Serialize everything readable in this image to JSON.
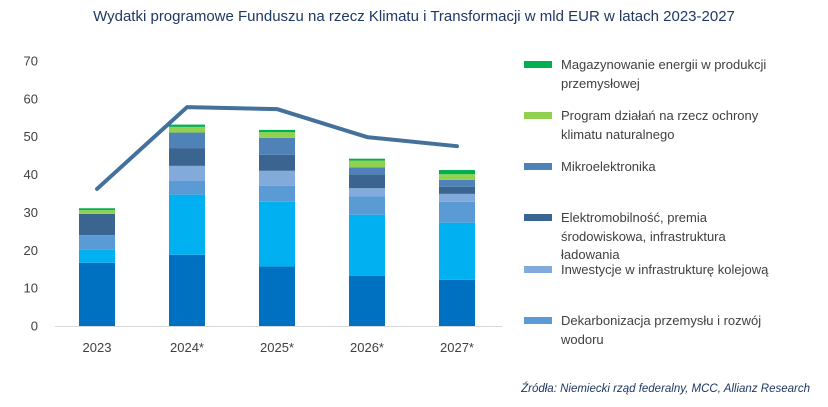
{
  "chart_data": {
    "type": "bar",
    "stacked": true,
    "title": "Wydatki programowe Funduszu na rzecz Klimatu i Transformacji w mld EUR w latach 2023-2027",
    "xlabel": "",
    "ylabel": "",
    "ylim": [
      0,
      70
    ],
    "yticks": [
      "0",
      "10",
      "20",
      "30",
      "40",
      "50",
      "60",
      "70"
    ],
    "categories": [
      "2023",
      "2024*",
      "2025*",
      "2026*",
      "2027*"
    ],
    "grid": false,
    "legend_position": "right",
    "series": [
      {
        "name": "",
        "color": "#0070C0",
        "values": [
          16.7,
          18.8,
          15.7,
          13.3,
          12.2
        ]
      },
      {
        "name": "",
        "color": "#00B0F0",
        "values": [
          3.4,
          15.9,
          17.1,
          16.1,
          15.1
        ]
      },
      {
        "name": "Dekarbonizacja przemysłu i rozwój wodoru",
        "color": "#5B9BD5",
        "values": [
          3.9,
          3.6,
          4.2,
          4.9,
          5.5
        ]
      },
      {
        "name": "Inwestycje w infrastrukturę kolejową",
        "color": "#82AADB",
        "values": [
          0,
          4.0,
          4.0,
          2.1,
          2.1
        ]
      },
      {
        "name": "Elektromobilność, premia środowiskowa, infrastruktura ładowania",
        "color": "#3B6591",
        "values": [
          5.6,
          4.7,
          4.2,
          3.6,
          1.9
        ]
      },
      {
        "name": "Mikroelektronika",
        "color": "#4F83B8",
        "values": [
          0,
          4.1,
          4.5,
          1.9,
          1.8
        ]
      },
      {
        "name": "Program działań na rzecz ochrony klimatu naturalnego",
        "color": "#92D050",
        "values": [
          1.0,
          1.5,
          1.5,
          1.8,
          1.5
        ]
      },
      {
        "name": "Magazynowanie energii w produkcji przemysłowej",
        "color": "#00B050",
        "values": [
          0.5,
          0.6,
          0.6,
          0.5,
          1.1
        ]
      }
    ],
    "line": {
      "name": "",
      "color": "#44719C",
      "values": [
        36.2,
        57.8,
        57.3,
        49.9,
        47.5
      ]
    }
  },
  "legend": [
    {
      "lines": [
        "Magazynowanie energii w produkcji",
        "przemysłowej"
      ],
      "color": "#00B050"
    },
    {
      "lines": [
        "Program działań na rzecz ochrony",
        "klimatu naturalnego"
      ],
      "color": "#92D050"
    },
    {
      "lines": [
        "Mikroelektronika"
      ],
      "color": "#4F83B8"
    },
    {
      "lines": [
        "Elektromobilność, premia",
        "środowiskowa, infrastruktura",
        "ładowania"
      ],
      "color": "#3B6591"
    },
    {
      "lines": [
        "Inwestycje w infrastrukturę kolejową"
      ],
      "color": "#82AADB"
    },
    {
      "lines": [
        "Dekarbonizacja przemysłu i rozwój",
        "wodoru"
      ],
      "color": "#5B9BD5"
    }
  ],
  "source": "Źródła: Niemiecki rząd federalny, MCC, Allianz Research"
}
